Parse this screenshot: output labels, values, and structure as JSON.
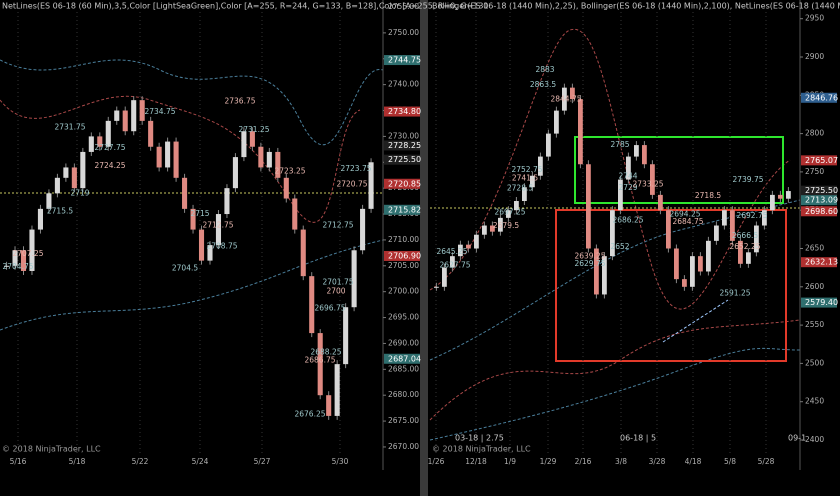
{
  "panels": [
    {
      "header": "NetLines(ES 06-18 (60 Min),3,5,Color [LightSeaGreen],Color [A=255, R=244, G=133, B=128],Color [A=255, R=0, G=131",
      "yticks": [
        {
          "value": 2670,
          "label": "2670.00"
        },
        {
          "value": 2675,
          "label": "2675.00"
        },
        {
          "value": 2680,
          "label": "2680.00"
        },
        {
          "value": 2685,
          "label": "2685.00"
        },
        {
          "value": 2690,
          "label": "2690.00"
        },
        {
          "value": 2695,
          "label": "2695.00"
        },
        {
          "value": 2700,
          "label": "2700.00"
        },
        {
          "value": 2705,
          "label": "2705.00"
        },
        {
          "value": 2710,
          "label": "2710.00"
        },
        {
          "value": 2715,
          "label": "2715.00"
        },
        {
          "value": 2720,
          "label": "2720.00"
        },
        {
          "value": 2725,
          "label": "2725.00"
        },
        {
          "value": 2730,
          "label": "2730.00"
        },
        {
          "value": 2735,
          "label": "2735.00"
        },
        {
          "value": 2740,
          "label": "2740.00"
        },
        {
          "value": 2745,
          "label": "2745.00"
        },
        {
          "value": 2750,
          "label": "2750.00"
        },
        {
          "value": 2755,
          "label": "2755.00"
        }
      ],
      "dates": [
        "5/16",
        "5/18",
        "5/22",
        "5/24",
        "5/27",
        "5/30"
      ],
      "price_tags": [
        {
          "label": "2744.75",
          "color": "#2f6f6f"
        },
        {
          "label": "2734.80",
          "color": "#b03030"
        },
        {
          "label": "2728.25",
          "color": "#202020"
        },
        {
          "label": "2725.50",
          "color": "#202020"
        },
        {
          "label": "2720.85",
          "color": "#b03030"
        },
        {
          "label": "2715.82",
          "color": "#2f6f6f"
        },
        {
          "label": "2706.90",
          "color": "#b03030"
        },
        {
          "label": "2687.04",
          "color": "#2f6f6f"
        }
      ],
      "annotations": [
        "2731.75",
        "2727.75",
        "2724.25",
        "2719",
        "2715.5",
        "2707.25",
        "2704.75",
        "2734.75",
        "2736.75",
        "2731.25",
        "2715",
        "2712.75",
        "2708.75",
        "2704.5",
        "2723.25",
        "2712.75",
        "2701.75",
        "2700",
        "2696.75",
        "2688.25",
        "2686.75",
        "2676.25",
        "2723.75",
        "2720.75"
      ],
      "closes": [
        2705,
        2708,
        2704,
        2712,
        2716,
        2719,
        2722,
        2724,
        2720,
        2727,
        2730,
        2728,
        2733,
        2735,
        2731,
        2737,
        2733,
        2728,
        2724,
        2729,
        2722,
        2716,
        2712,
        2706,
        2709,
        2715,
        2720,
        2726,
        2731,
        2728,
        2724,
        2727,
        2722,
        2718,
        2712,
        2703,
        2692,
        2680,
        2676,
        2686,
        2697,
        2708,
        2716,
        2725
      ],
      "up_color": "#d8d8d8",
      "down_color": "#e08a82",
      "copyright": "© 2018 NinjaTrader, LLC"
    },
    {
      "header": "Bollinger(ES 06-18 (1440 Min),2,25), Bollinger(ES 06-18 (1440 Min),2,100), NetLines(ES 06-18 (1440 Min),3,5,Color",
      "yticks": [
        2400,
        2450,
        2500,
        2550,
        2600,
        2650,
        2700,
        2750,
        2800,
        2850,
        2900,
        2950
      ],
      "dates": [
        "1/26",
        "12/18",
        "1/9",
        "1/29",
        "2/16",
        "3/8",
        "3/28",
        "4/18",
        "5/8",
        "5/28"
      ],
      "price_tags": [
        {
          "label": "2846.76",
          "color": "#2f5f8f"
        },
        {
          "label": "2765.07",
          "color": "#b03030"
        },
        {
          "label": "2725.50",
          "color": "#202020"
        },
        {
          "label": "2713.09",
          "color": "#2f6f6f"
        },
        {
          "label": "2698.60",
          "color": "#b03030"
        },
        {
          "label": "2632.13",
          "color": "#b03030"
        },
        {
          "label": "2579.40",
          "color": "#2f6f6f"
        }
      ],
      "annotations": [
        "2883",
        "2863.5",
        "2844.75",
        "2785",
        "2752.75",
        "2741.5",
        "2728.5",
        "2697.25",
        "2679.5",
        "2744",
        "2729",
        "2733.25",
        "2686.25",
        "2652",
        "2639.25",
        "2629.75",
        "2694.25",
        "2684.75",
        "2692.75",
        "2666.5",
        "2652.25",
        "2591.25",
        "2739.75",
        "2718.5",
        "2645.25",
        "2627.75"
      ],
      "closes": [
        2600,
        2625,
        2640,
        2655,
        2650,
        2668,
        2680,
        2672,
        2690,
        2700,
        2712,
        2730,
        2745,
        2770,
        2800,
        2830,
        2860,
        2845,
        2760,
        2650,
        2590,
        2640,
        2700,
        2740,
        2770,
        2785,
        2760,
        2720,
        2700,
        2650,
        2610,
        2600,
        2640,
        2620,
        2660,
        2680,
        2700,
        2660,
        2630,
        2645,
        2680,
        2700,
        2720,
        2715,
        2725
      ],
      "up_color": "#d8d8d8",
      "down_color": "#e08a82",
      "labels": [
        "03-18 | 2.75",
        "06-18 | 5",
        "09-1"
      ],
      "copyright": "© 2018 NinjaTrader, LLC"
    }
  ]
}
